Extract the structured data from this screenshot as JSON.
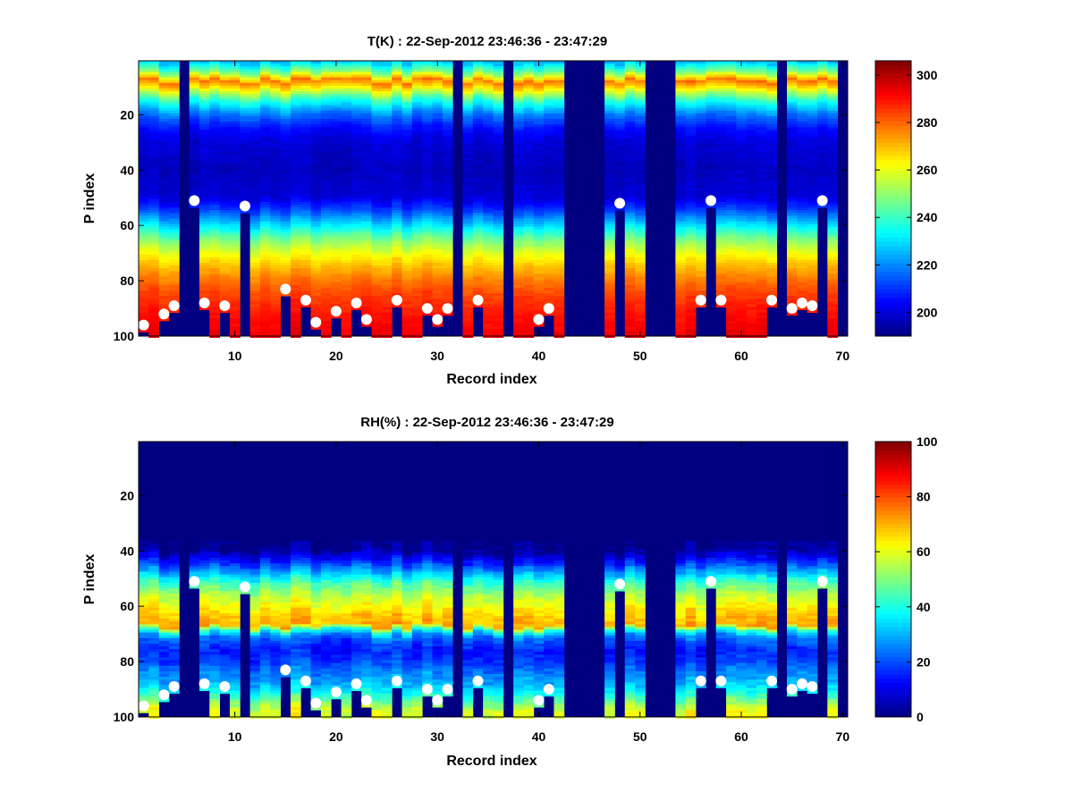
{
  "chart_data": [
    {
      "type": "heatmap",
      "title": "T(K) : 22-Sep-2012 23:46:36 - 23:47:29",
      "xlabel": "Record index",
      "ylabel": "P index",
      "xlim": [
        0.5,
        70.5
      ],
      "ylim": [
        100,
        0.5
      ],
      "y_reversed": true,
      "xticks": [
        "10",
        "20",
        "30",
        "40",
        "50",
        "60",
        "70"
      ],
      "yticks": [
        "20",
        "40",
        "60",
        "80",
        "100"
      ],
      "colormap": "jet",
      "clim": [
        190,
        306
      ],
      "colorbar_ticks": [
        "200",
        "220",
        "240",
        "260",
        "280",
        "300"
      ],
      "profile_shape_K": [
        [
          1,
          226
        ],
        [
          5,
          250
        ],
        [
          8,
          278
        ],
        [
          10,
          268
        ],
        [
          15,
          238
        ],
        [
          20,
          218
        ],
        [
          25,
          206
        ],
        [
          30,
          200
        ],
        [
          40,
          197
        ],
        [
          50,
          200
        ],
        [
          55,
          213
        ],
        [
          60,
          230
        ],
        [
          65,
          247
        ],
        [
          70,
          260
        ],
        [
          75,
          270
        ],
        [
          80,
          278
        ],
        [
          85,
          284
        ],
        [
          90,
          288
        ],
        [
          95,
          291
        ],
        [
          100,
          293
        ]
      ],
      "missing_columns": [
        5,
        32,
        37,
        43,
        44,
        45,
        46,
        51,
        52,
        53,
        64,
        70
      ],
      "cutoff_markers": [
        {
          "x": 1,
          "y": 96
        },
        {
          "x": 3,
          "y": 92
        },
        {
          "x": 4,
          "y": 89
        },
        {
          "x": 6,
          "y": 51
        },
        {
          "x": 7,
          "y": 88
        },
        {
          "x": 9,
          "y": 89
        },
        {
          "x": 11,
          "y": 53
        },
        {
          "x": 15,
          "y": 83
        },
        {
          "x": 17,
          "y": 87
        },
        {
          "x": 18,
          "y": 95
        },
        {
          "x": 20,
          "y": 91
        },
        {
          "x": 22,
          "y": 88
        },
        {
          "x": 23,
          "y": 94
        },
        {
          "x": 26,
          "y": 87
        },
        {
          "x": 29,
          "y": 90
        },
        {
          "x": 30,
          "y": 94
        },
        {
          "x": 31,
          "y": 90
        },
        {
          "x": 34,
          "y": 87
        },
        {
          "x": 40,
          "y": 94
        },
        {
          "x": 41,
          "y": 90
        },
        {
          "x": 48,
          "y": 52
        },
        {
          "x": 56,
          "y": 87
        },
        {
          "x": 57,
          "y": 51
        },
        {
          "x": 58,
          "y": 87
        },
        {
          "x": 63,
          "y": 87
        },
        {
          "x": 65,
          "y": 90
        },
        {
          "x": 66,
          "y": 88
        },
        {
          "x": 67,
          "y": 89
        },
        {
          "x": 68,
          "y": 51
        }
      ]
    },
    {
      "type": "heatmap",
      "title": "RH(%) : 22-Sep-2012 23:46:36 - 23:47:29",
      "xlabel": "Record index",
      "ylabel": "P index",
      "xlim": [
        0.5,
        70.5
      ],
      "ylim": [
        100,
        0.5
      ],
      "y_reversed": true,
      "xticks": [
        "10",
        "20",
        "30",
        "40",
        "50",
        "60",
        "70"
      ],
      "yticks": [
        "20",
        "40",
        "60",
        "80",
        "100"
      ],
      "colormap": "jet",
      "clim": [
        0,
        100
      ],
      "colorbar_ticks": [
        "0",
        "20",
        "40",
        "60",
        "80",
        "100"
      ],
      "profile_shape_pct": [
        [
          1,
          0
        ],
        [
          36,
          0
        ],
        [
          40,
          3
        ],
        [
          44,
          15
        ],
        [
          48,
          30
        ],
        [
          52,
          45
        ],
        [
          56,
          55
        ],
        [
          60,
          62
        ],
        [
          64,
          68
        ],
        [
          67,
          70
        ],
        [
          69,
          40
        ],
        [
          71,
          25
        ],
        [
          73,
          20
        ],
        [
          76,
          15
        ],
        [
          80,
          18
        ],
        [
          84,
          25
        ],
        [
          88,
          30
        ],
        [
          92,
          40
        ],
        [
          95,
          50
        ],
        [
          98,
          60
        ],
        [
          100,
          60
        ]
      ],
      "missing_columns": [
        5,
        32,
        37,
        43,
        44,
        45,
        46,
        51,
        52,
        53,
        64,
        70
      ],
      "cutoff_markers": [
        {
          "x": 1,
          "y": 96
        },
        {
          "x": 3,
          "y": 92
        },
        {
          "x": 4,
          "y": 89
        },
        {
          "x": 6,
          "y": 51
        },
        {
          "x": 7,
          "y": 88
        },
        {
          "x": 9,
          "y": 89
        },
        {
          "x": 11,
          "y": 53
        },
        {
          "x": 15,
          "y": 83
        },
        {
          "x": 17,
          "y": 87
        },
        {
          "x": 18,
          "y": 95
        },
        {
          "x": 20,
          "y": 91
        },
        {
          "x": 22,
          "y": 88
        },
        {
          "x": 23,
          "y": 94
        },
        {
          "x": 26,
          "y": 87
        },
        {
          "x": 29,
          "y": 90
        },
        {
          "x": 30,
          "y": 94
        },
        {
          "x": 31,
          "y": 90
        },
        {
          "x": 34,
          "y": 87
        },
        {
          "x": 40,
          "y": 94
        },
        {
          "x": 41,
          "y": 90
        },
        {
          "x": 48,
          "y": 52
        },
        {
          "x": 56,
          "y": 87
        },
        {
          "x": 57,
          "y": 51
        },
        {
          "x": 58,
          "y": 87
        },
        {
          "x": 63,
          "y": 87
        },
        {
          "x": 65,
          "y": 90
        },
        {
          "x": 66,
          "y": 88
        },
        {
          "x": 67,
          "y": 89
        },
        {
          "x": 68,
          "y": 51
        }
      ]
    }
  ]
}
